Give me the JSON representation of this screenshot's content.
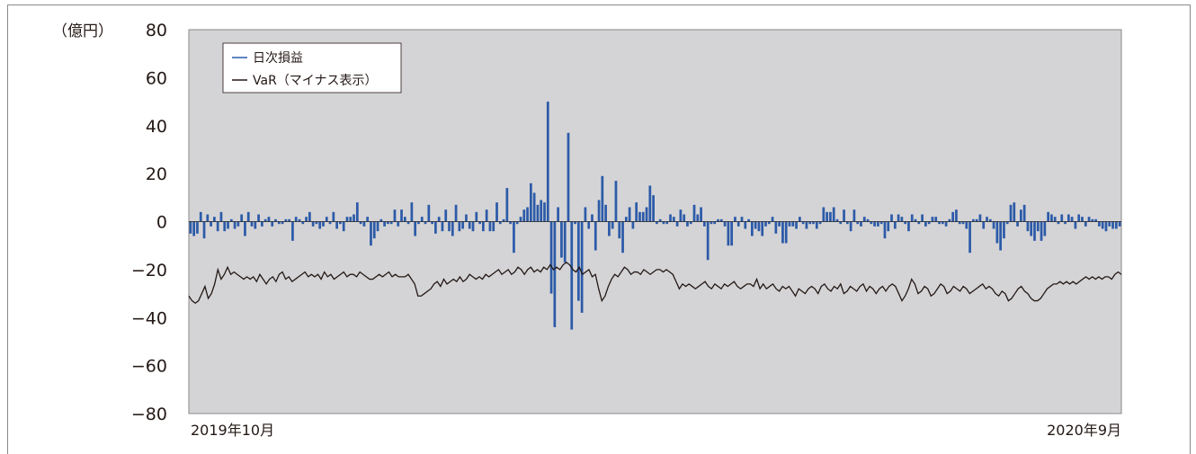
{
  "chart_data": {
    "type": "bar",
    "unit_label": "（億円）",
    "ylim": [
      -80,
      80
    ],
    "yticks": [
      80,
      60,
      40,
      20,
      0,
      -20,
      -40,
      -60,
      -80
    ],
    "ytick_labels": [
      "80",
      "60",
      "40",
      "20",
      "0",
      "−20",
      "−40",
      "−60",
      "−80"
    ],
    "x_start_label": "2019年10月",
    "x_end_label": "2020年9月",
    "grid": false,
    "legend": {
      "placement": "top-left"
    },
    "colors": {
      "plot_bg": "#d4d4d6",
      "bar": "#2c5aa8",
      "line": "#231815",
      "frame": "#8a8a8a"
    },
    "series": [
      {
        "name": "日次損益",
        "kind": "bar",
        "values": [
          -5,
          -6,
          -5,
          4,
          -7,
          3,
          -2,
          2,
          -4,
          4,
          -4,
          -3,
          1,
          -3,
          -2,
          3,
          -6,
          4,
          -2,
          -3,
          3,
          -2,
          1,
          2,
          -2,
          1,
          -1,
          -1,
          1,
          1,
          -8,
          2,
          1,
          -1,
          2,
          4,
          -2,
          -1,
          -3,
          -2,
          2,
          -1,
          4,
          -3,
          -1,
          -4,
          2,
          2,
          3,
          8,
          -1,
          -2,
          2,
          -10,
          -7,
          -4,
          1,
          -2,
          -1,
          -1,
          5,
          -2,
          5,
          2,
          -1,
          8,
          -6,
          -1,
          2,
          -1,
          7,
          -1,
          -5,
          2,
          -4,
          5,
          -4,
          -6,
          7,
          -4,
          -3,
          3,
          -3,
          -4,
          4,
          -1,
          -4,
          5,
          -4,
          -4,
          8,
          -1,
          1,
          14,
          -1,
          -13,
          -1,
          2,
          5,
          6,
          16,
          12,
          7,
          9,
          8,
          50,
          -30,
          -44,
          6,
          -15,
          -17,
          37,
          -45,
          -1,
          -33,
          -38,
          6,
          -3,
          3,
          -12,
          9,
          19,
          7,
          -6,
          -3,
          17,
          -7,
          -13,
          2,
          6,
          -3,
          8,
          4,
          4,
          6,
          15,
          11,
          -1,
          1,
          -1,
          -1,
          3,
          2,
          -2,
          5,
          3,
          -2,
          -1,
          7,
          3,
          6,
          -2,
          -16,
          -1,
          -1,
          1,
          1,
          -2,
          -10,
          -10,
          2,
          -2,
          2,
          -3,
          1,
          -6,
          -3,
          -4,
          -6,
          -2,
          -1,
          2,
          -5,
          -2,
          -9,
          -9,
          -2,
          -2,
          -3,
          2,
          -1,
          -3,
          -1,
          -1,
          -3,
          -1,
          6,
          4,
          4,
          6,
          1,
          -1,
          5,
          -1,
          -4,
          5,
          -1,
          -2,
          2,
          1,
          -1,
          -2,
          -2,
          -1,
          -7,
          -4,
          3,
          -3,
          3,
          2,
          -1,
          -4,
          3,
          1,
          -1,
          3,
          -2,
          -1,
          2,
          2,
          -1,
          -1,
          -2,
          1,
          4,
          5,
          -1,
          -1,
          -3,
          -13,
          1,
          1,
          3,
          -3,
          2,
          1,
          -3,
          -9,
          -12,
          -7,
          -1,
          7,
          8,
          -2,
          5,
          7,
          -4,
          -6,
          -8,
          -4,
          -8,
          -6,
          4,
          3,
          2,
          -1,
          3,
          -1,
          3,
          2,
          -3,
          3,
          2,
          -2,
          2,
          1,
          1,
          -2,
          -3,
          -4,
          -2,
          -3,
          -3,
          -2
        ]
      },
      {
        "name": "VaR（マイナス表示）",
        "kind": "line",
        "values": [
          -31,
          -33,
          -34,
          -33,
          -30,
          -27,
          -32,
          -30,
          -26,
          -20,
          -24,
          -22,
          -19,
          -22,
          -21,
          -22,
          -23,
          -24,
          -23,
          -24,
          -23,
          -25,
          -22,
          -24,
          -26,
          -24,
          -23,
          -25,
          -22,
          -21,
          -24,
          -23,
          -25,
          -24,
          -23,
          -22,
          -21,
          -23,
          -22,
          -23,
          -22,
          -24,
          -21,
          -23,
          -22,
          -24,
          -23,
          -22,
          -21,
          -23,
          -22,
          -22,
          -23,
          -21,
          -22,
          -23,
          -24,
          -24,
          -23,
          -22,
          -23,
          -22,
          -21,
          -23,
          -22,
          -23,
          -23,
          -23,
          -22,
          -24,
          -26,
          -31,
          -31,
          -30,
          -29,
          -28,
          -26,
          -25,
          -27,
          -24,
          -26,
          -25,
          -24,
          -25,
          -23,
          -25,
          -24,
          -22,
          -23,
          -24,
          -23,
          -24,
          -22,
          -23,
          -22,
          -21,
          -20,
          -22,
          -21,
          -20,
          -22,
          -21,
          -19,
          -20,
          -22,
          -20,
          -19,
          -21,
          -20,
          -21,
          -19,
          -20,
          -18,
          -20,
          -19,
          -20,
          -18,
          -17,
          -18,
          -20,
          -21,
          -19,
          -22,
          -21,
          -20,
          -23,
          -22,
          -28,
          -33,
          -31,
          -27,
          -24,
          -22,
          -23,
          -21,
          -19,
          -20,
          -22,
          -21,
          -21,
          -22,
          -20,
          -21,
          -22,
          -21,
          -20,
          -20,
          -21,
          -20,
          -21,
          -22,
          -25,
          -28,
          -26,
          -27,
          -26,
          -27,
          -28,
          -27,
          -26,
          -25,
          -27,
          -28,
          -26,
          -27,
          -28,
          -26,
          -27,
          -26,
          -25,
          -27,
          -28,
          -27,
          -26,
          -26,
          -27,
          -24,
          -28,
          -26,
          -28,
          -27,
          -26,
          -28,
          -29,
          -27,
          -28,
          -27,
          -29,
          -31,
          -28,
          -29,
          -30,
          -28,
          -27,
          -28,
          -30,
          -27,
          -26,
          -28,
          -29,
          -27,
          -28,
          -26,
          -30,
          -29,
          -27,
          -28,
          -29,
          -27,
          -26,
          -29,
          -27,
          -28,
          -30,
          -28,
          -27,
          -29,
          -27,
          -26,
          -27,
          -30,
          -33,
          -31,
          -28,
          -24,
          -26,
          -30,
          -29,
          -27,
          -28,
          -31,
          -30,
          -28,
          -26,
          -27,
          -30,
          -29,
          -27,
          -28,
          -29,
          -27,
          -28,
          -30,
          -29,
          -28,
          -27,
          -26,
          -28,
          -27,
          -28,
          -30,
          -31,
          -29,
          -30,
          -33,
          -32,
          -30,
          -28,
          -27,
          -29,
          -30,
          -32,
          -33,
          -33,
          -32,
          -30,
          -28,
          -27,
          -26,
          -26,
          -25,
          -26,
          -25,
          -26,
          -25,
          -26,
          -25,
          -24,
          -23,
          -24,
          -23,
          -24,
          -23,
          -24,
          -23,
          -23,
          -24,
          -22,
          -21,
          -22
        ]
      }
    ]
  }
}
